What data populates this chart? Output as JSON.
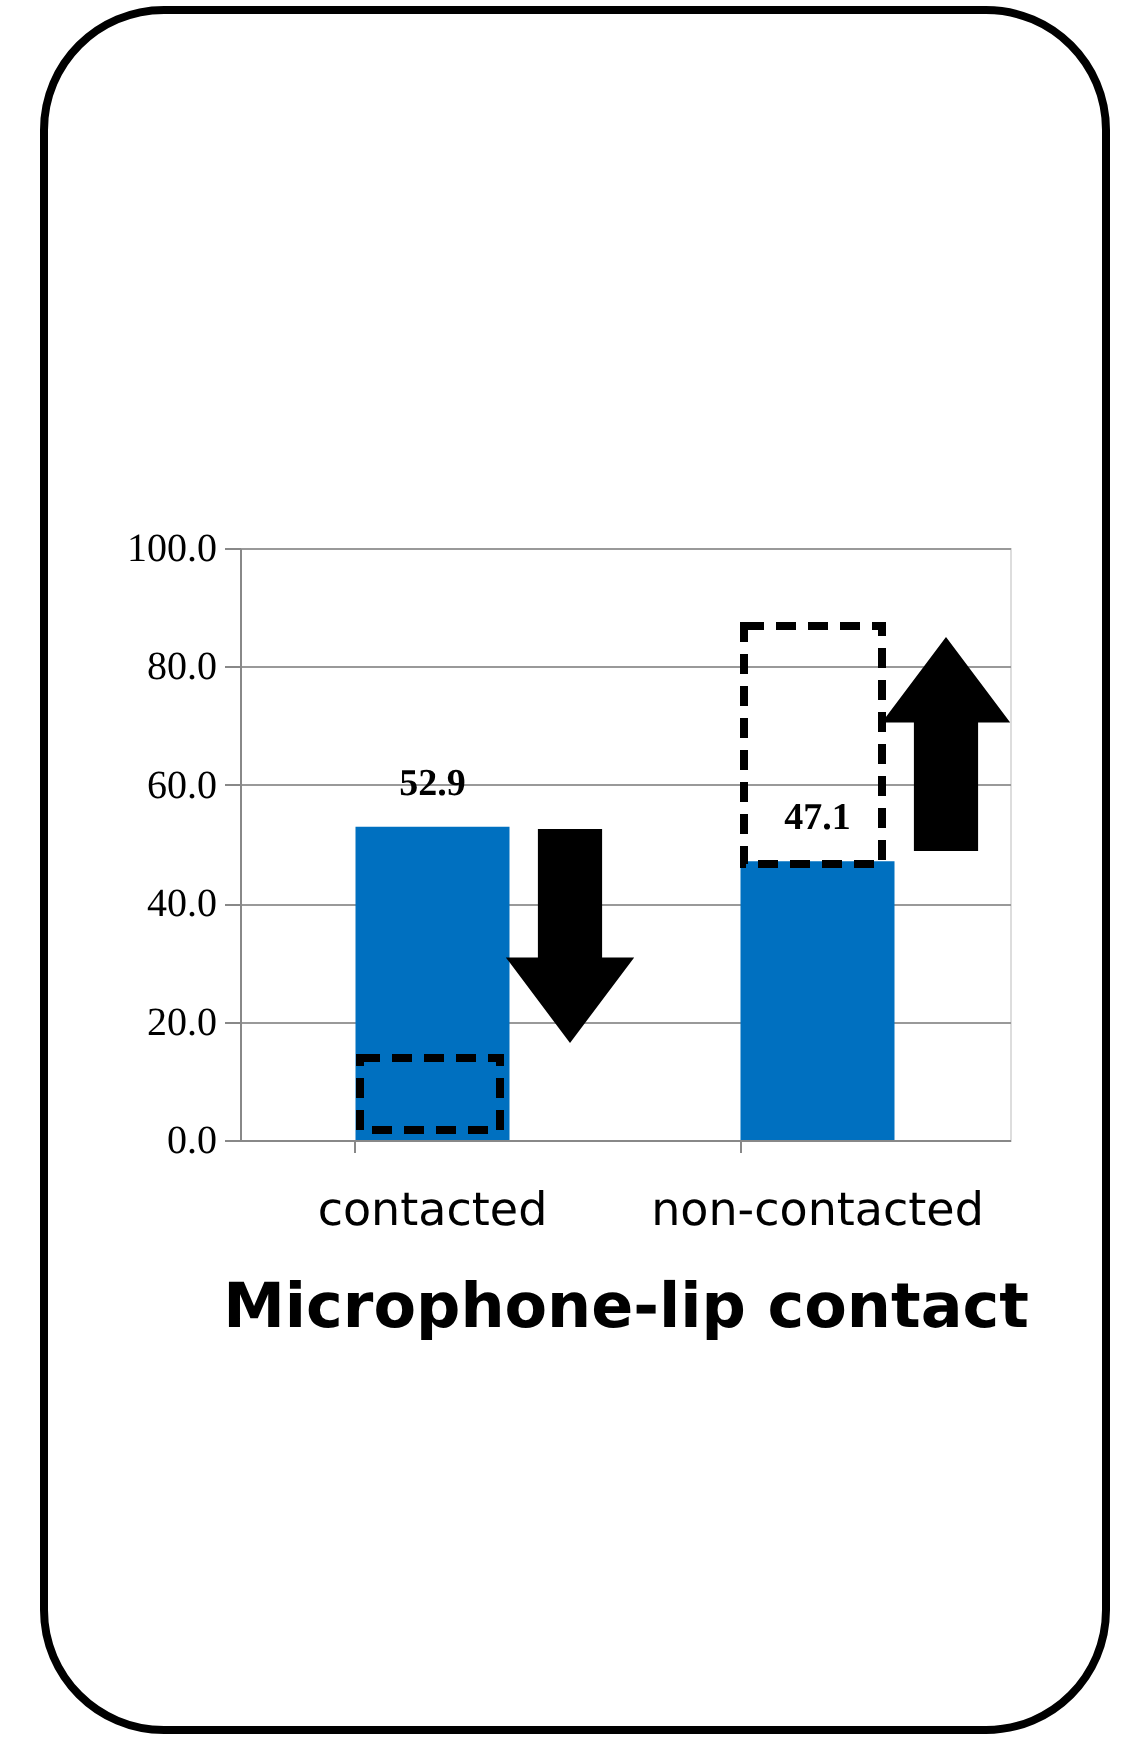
{
  "chart_data": {
    "type": "bar",
    "xlabel": "Microphone-lip contact",
    "categories": [
      "contacted",
      "non-contacted"
    ],
    "values": [
      52.9,
      47.1
    ],
    "color": "#0070c0",
    "ylim": [
      0,
      100
    ],
    "yticks": [
      {
        "value": 0,
        "label": "0.0"
      },
      {
        "value": 20,
        "label": "20.0"
      },
      {
        "value": 40,
        "label": "40.0"
      },
      {
        "value": 60,
        "label": "60.0"
      },
      {
        "value": 80,
        "label": "80.0"
      },
      {
        "value": 100,
        "label": "100.0"
      }
    ],
    "data_labels": true,
    "grid": "y"
  }
}
